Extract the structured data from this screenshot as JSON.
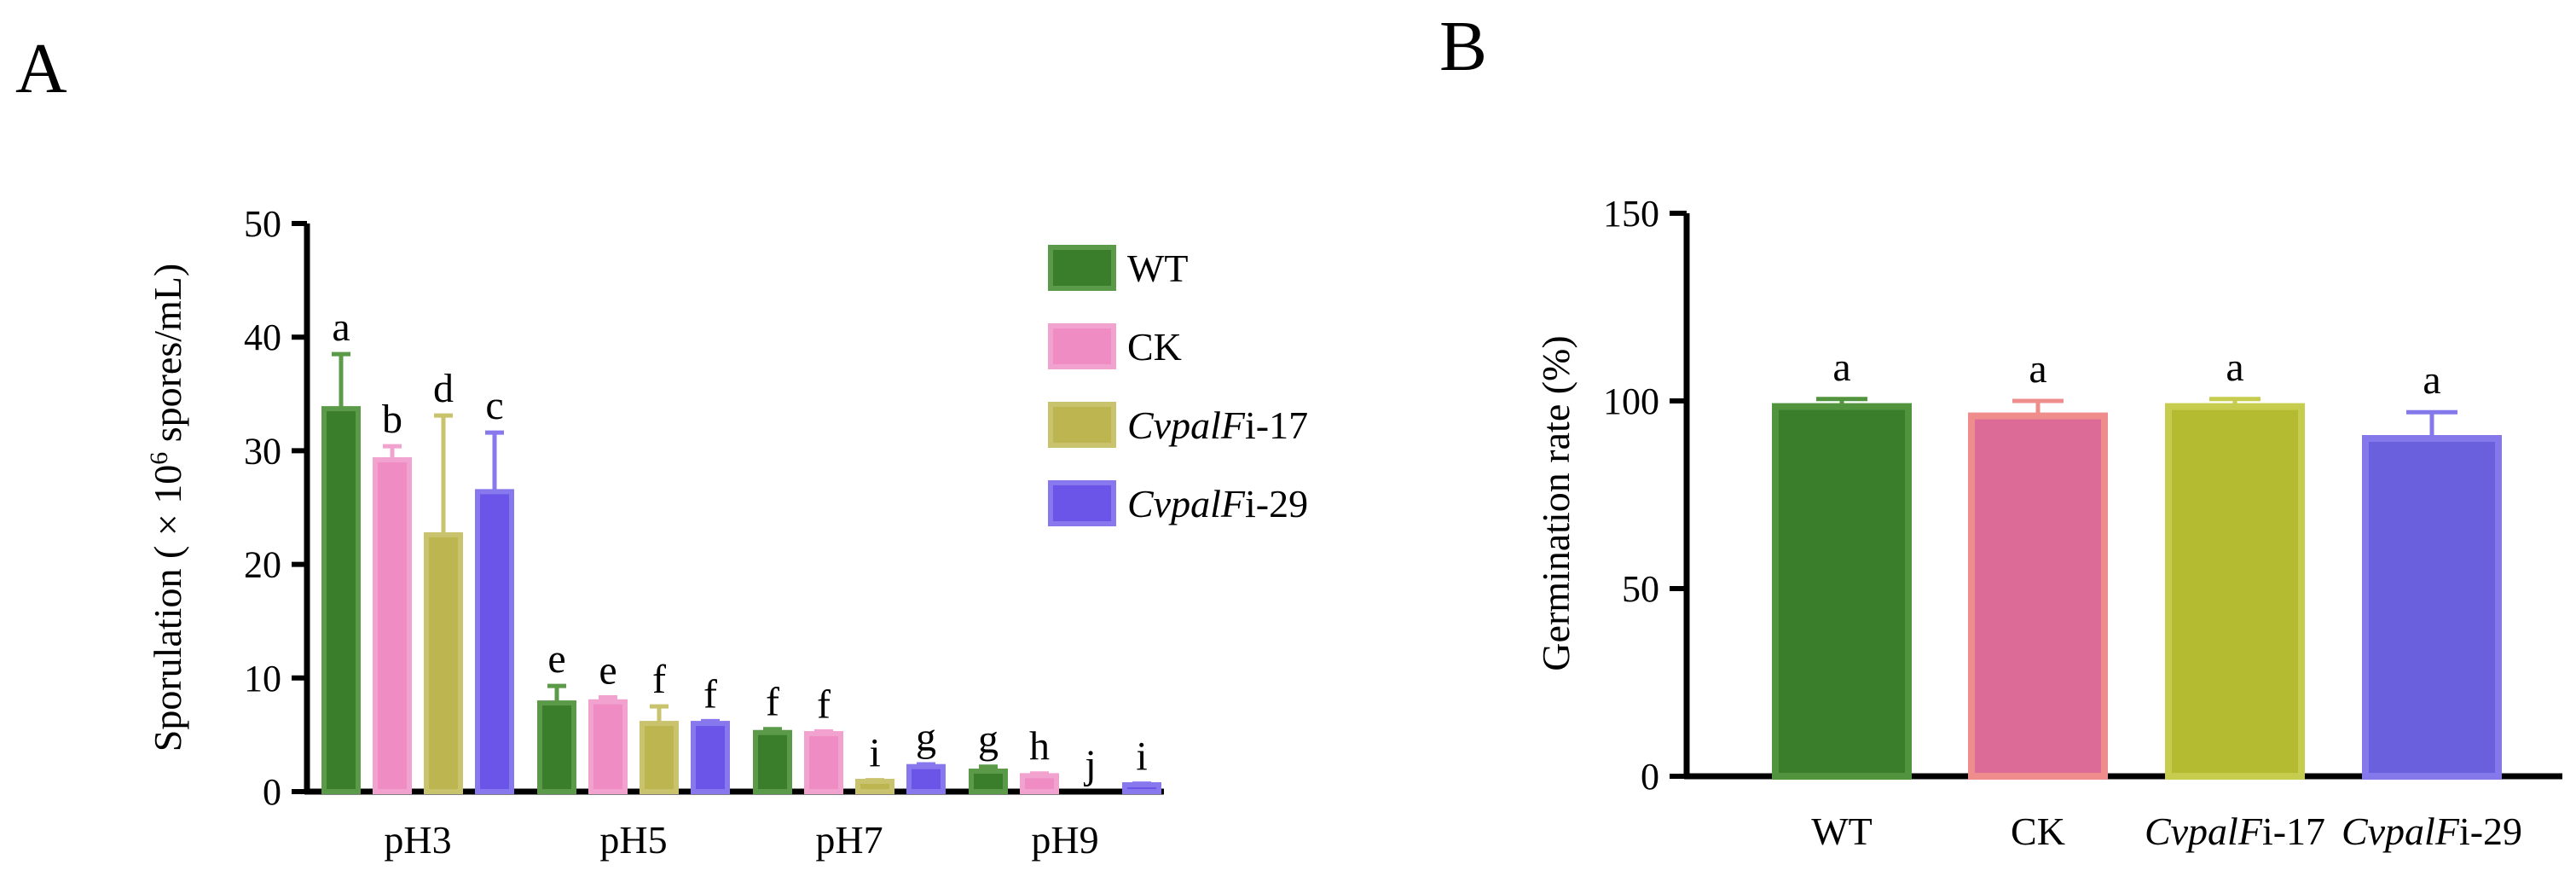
{
  "chart_data": [
    {
      "panel": "A",
      "type": "bar",
      "ylabel_pre": "Sporulation ( × 10",
      "ylabel_sup": "6",
      "ylabel_post": " spores/mL)",
      "xlabel": "",
      "ylim": [
        0,
        50
      ],
      "yticks": [
        0,
        10,
        20,
        30,
        40,
        50
      ],
      "grid": false,
      "legend_position": "top-right",
      "categories": [
        "pH3",
        "pH5",
        "pH7",
        "pH9"
      ],
      "series": [
        {
          "name": "WT",
          "italic": "",
          "suffix": "WT",
          "color": "#3a7d2a",
          "border": "#5a9a48",
          "values": [
            33.7,
            7.8,
            5.2,
            1.8
          ],
          "errors": [
            4.8,
            1.5,
            0.3,
            0.4
          ],
          "labels": [
            "a",
            "e",
            "f",
            "g"
          ]
        },
        {
          "name": "CK",
          "italic": "",
          "suffix": "CK",
          "color": "#ef8cc3",
          "border": "#f2a2cf",
          "values": [
            29.2,
            7.9,
            5.1,
            1.4
          ],
          "errors": [
            1.2,
            0.4,
            0.2,
            0.2
          ],
          "labels": [
            "b",
            "e",
            "f",
            "h"
          ]
        },
        {
          "name": "CvpalFi-17",
          "italic": "CvpalF",
          "suffix": "i-17",
          "color": "#bcb550",
          "border": "#c9c36e",
          "values": [
            22.6,
            6.0,
            0.9,
            0.0
          ],
          "errors": [
            10.5,
            1.5,
            0.1,
            0.0
          ],
          "labels": [
            "d",
            "f",
            "i",
            "j"
          ]
        },
        {
          "name": "CvpalFi-29",
          "italic": "CvpalF",
          "suffix": "i-29",
          "color": "#6a55e8",
          "border": "#8878ee",
          "values": [
            26.4,
            6.0,
            2.2,
            0.6
          ],
          "errors": [
            5.2,
            0.2,
            0.2,
            0.1
          ],
          "labels": [
            "c",
            "f",
            "g",
            "i"
          ]
        }
      ]
    },
    {
      "panel": "B",
      "type": "bar",
      "ylabel": "Germination rate (%)",
      "xlabel": "",
      "ylim": [
        0,
        150
      ],
      "yticks": [
        0,
        50,
        100,
        150
      ],
      "grid": false,
      "categories": [
        {
          "italic": "",
          "suffix": "WT"
        },
        {
          "italic": "",
          "suffix": "CK"
        },
        {
          "italic": "CvpalF",
          "suffix": "i-17"
        },
        {
          "italic": "CvpalF",
          "suffix": "i-29"
        }
      ],
      "values": [
        98.5,
        96.0,
        98.5,
        90.0
      ],
      "errors": [
        2.0,
        4.0,
        2.0,
        7.0
      ],
      "labels": [
        "a",
        "a",
        "a",
        "a"
      ],
      "colors": [
        "#3a7d2a",
        "#dc6b98",
        "#b4bb30",
        "#6a5fdc"
      ],
      "borders": [
        "#52943e",
        "#ef8c8c",
        "#c5cc4e",
        "#8478ea"
      ]
    }
  ]
}
